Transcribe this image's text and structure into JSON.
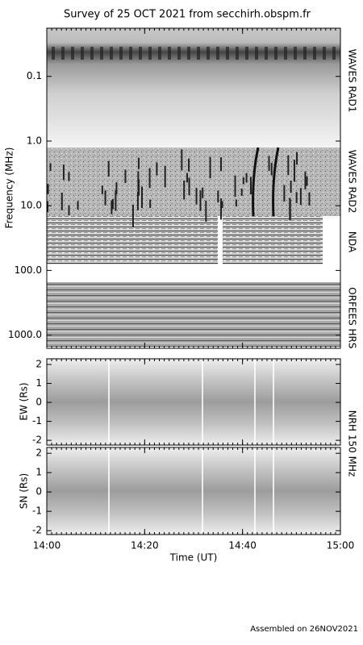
{
  "footer": "Assembled on 26NOV2021",
  "chart_data": [
    {
      "type": "spectrogram",
      "title": "Survey of 25 OCT 2021 from secchirh.obspm.fr",
      "y_label": "Frequency (MHz)",
      "log_scale": true,
      "y_inverted": true,
      "ylim": [
        0.018,
        1600
      ],
      "yticks": [
        0.1,
        {
          "value": 1,
          "label": "1.0"
        },
        {
          "value": 10,
          "label": "10.0"
        },
        {
          "value": 100,
          "label": "100.0"
        },
        {
          "value": 1000,
          "label": "1000.0"
        }
      ],
      "xlim": [
        0,
        60
      ],
      "xticks": [
        {
          "value": 0,
          "label": "14:00"
        },
        {
          "value": 20,
          "label": "14:20"
        },
        {
          "value": 40,
          "label": "14:40"
        },
        {
          "value": 60,
          "label": "15:00"
        }
      ],
      "panel_labels": [
        "WAVES RAD1",
        "WAVES RAD2",
        "NDA",
        "ORFEES",
        "HRS"
      ]
    },
    {
      "type": "spectrogram",
      "y_label": "EW (Rs)",
      "ylim": [
        -2.25,
        2.3
      ],
      "yticks": [
        -2,
        -1,
        0,
        1,
        2
      ],
      "xlim": [
        0,
        60
      ],
      "xticks": [
        {
          "value": 0,
          "label": "14:00"
        },
        {
          "value": 20,
          "label": "14:20"
        },
        {
          "value": 40,
          "label": "14:40"
        },
        {
          "value": 60,
          "label": "15:00"
        }
      ],
      "instrument_label": "NRH 150 MHz"
    },
    {
      "type": "spectrogram",
      "y_label": "SN (Rs)",
      "x_label": "Time (UT)",
      "ylim": [
        -2.2,
        2.3
      ],
      "yticks": [
        -2,
        -1,
        0,
        1,
        2
      ],
      "xlim": [
        0,
        60
      ],
      "xticks": [
        {
          "value": 0,
          "label": "14:00"
        },
        {
          "value": 20,
          "label": "14:20"
        },
        {
          "value": 40,
          "label": "14:40"
        },
        {
          "value": 60,
          "label": "15:00"
        }
      ]
    }
  ]
}
